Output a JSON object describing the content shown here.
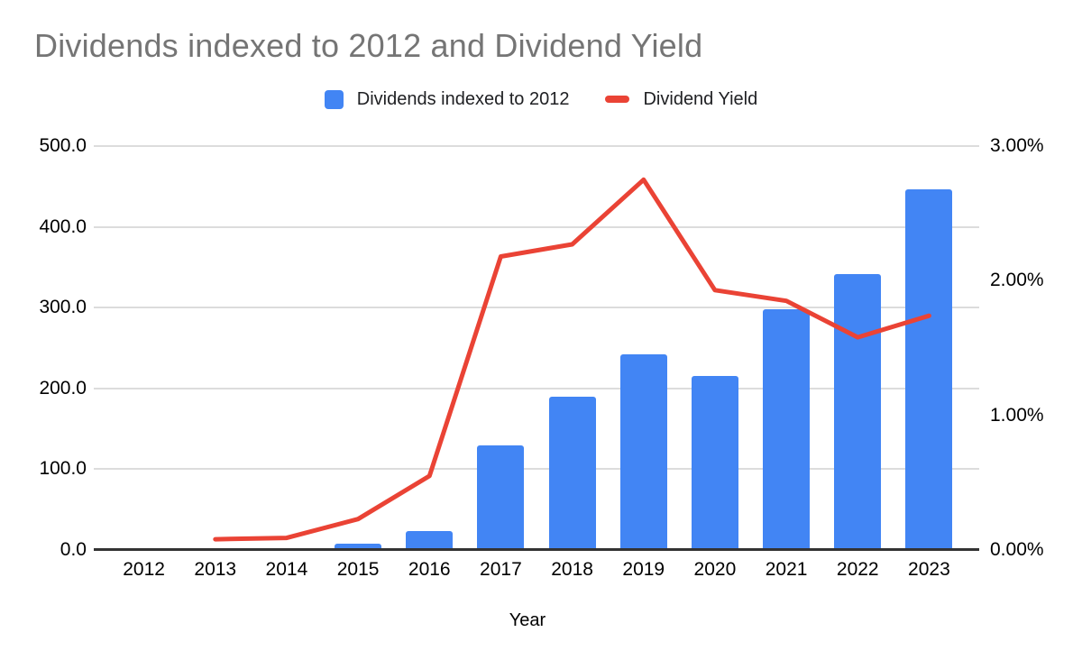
{
  "title": "Dividends indexed to 2012 and Dividend Yield",
  "colors": {
    "bar": "#4285F4",
    "line": "#EA4335",
    "title_text": "#757575",
    "axis_text": "#000000",
    "gridline": "#DCDCDC",
    "axis_line": "#333333",
    "background": "#FFFFFF"
  },
  "legend": {
    "items": [
      {
        "label": "Dividends indexed to 2012",
        "swatch": "square",
        "color": "#4285F4"
      },
      {
        "label": "Dividend Yield",
        "swatch": "dash",
        "color": "#EA4335"
      }
    ]
  },
  "chart_data": {
    "type": "combo",
    "title": "Dividends indexed to 2012 and Dividend Yield",
    "categories": [
      "2012",
      "2013",
      "2014",
      "2015",
      "2016",
      "2017",
      "2018",
      "2019",
      "2020",
      "2021",
      "2022",
      "2023"
    ],
    "series": [
      {
        "name": "Dividends indexed to 2012",
        "type": "bar",
        "axis": "left",
        "color": "#4285F4",
        "values": [
          0,
          0,
          0,
          8,
          23,
          130,
          190,
          242,
          215,
          298,
          341,
          446
        ]
      },
      {
        "name": "Dividend Yield",
        "type": "line",
        "axis": "right",
        "color": "#EA4335",
        "values": [
          null,
          0.08,
          0.09,
          0.23,
          0.55,
          2.18,
          2.27,
          2.75,
          1.93,
          1.85,
          1.58,
          1.74
        ]
      }
    ],
    "xlabel": "Year",
    "left_axis": {
      "min": 0,
      "max": 500,
      "ticks": [
        "500.0",
        "400.0",
        "300.0",
        "200.0",
        "100.0",
        "0.0"
      ]
    },
    "right_axis": {
      "min": 0,
      "max": 3,
      "ticks": [
        "3.00%",
        "2.00%",
        "1.00%",
        "0.00%"
      ]
    },
    "grid": true,
    "legend_position": "top"
  }
}
